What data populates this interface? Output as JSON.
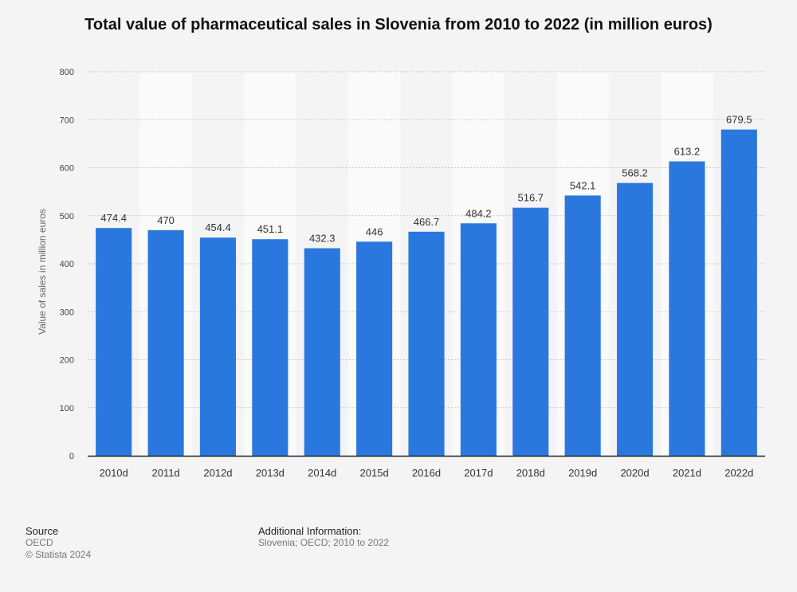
{
  "chart_data": {
    "type": "bar",
    "title": "Total value of pharmaceutical sales in Slovenia from 2010 to 2022 (in million euros)",
    "xlabel": "",
    "ylabel": "Value of sales in million euros",
    "ylim": [
      0,
      800
    ],
    "yticks": [
      0,
      100,
      200,
      300,
      400,
      500,
      600,
      700,
      800
    ],
    "grid": true,
    "categories": [
      "2010d",
      "2011d",
      "2012d",
      "2013d",
      "2014d",
      "2015d",
      "2016d",
      "2017d",
      "2018d",
      "2019d",
      "2020d",
      "2021d",
      "2022d"
    ],
    "values": [
      474.4,
      470,
      454.4,
      451.1,
      432.3,
      446,
      466.7,
      484.2,
      516.7,
      542.1,
      568.2,
      613.2,
      679.5
    ],
    "data_labels": [
      "474.4",
      "470",
      "454.4",
      "451.1",
      "432.3",
      "446",
      "466.7",
      "484.2",
      "516.7",
      "542.1",
      "568.2",
      "613.2",
      "679.5"
    ],
    "bar_color": "#2a78de"
  },
  "footer": {
    "source_heading": "Source",
    "source_name": "OECD",
    "copyright": "© Statista 2024",
    "info_heading": "Additional Information:",
    "info_text": "Slovenia; OECD; 2010 to 2022"
  }
}
